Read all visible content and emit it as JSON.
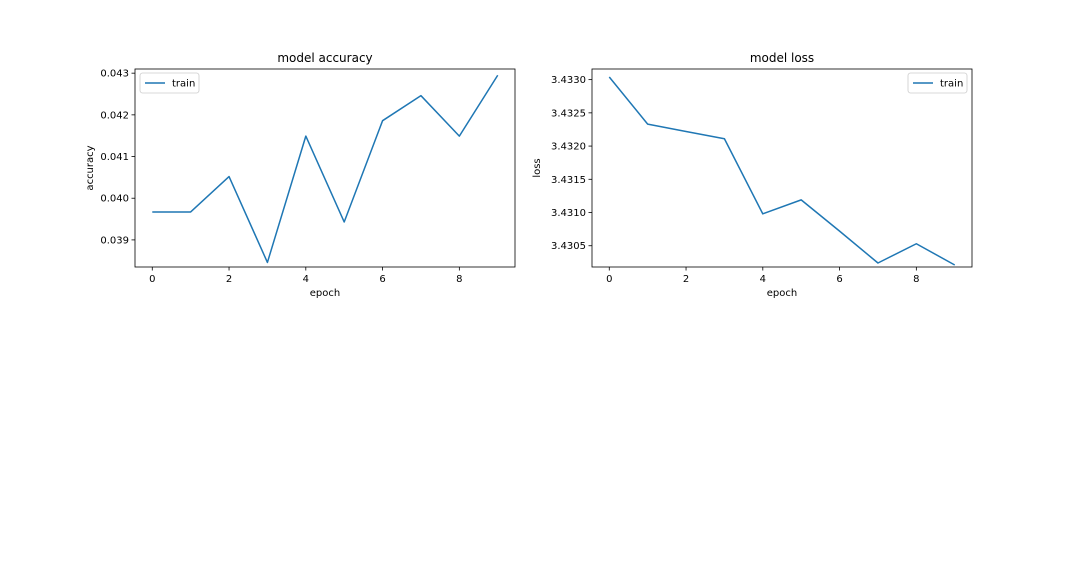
{
  "colors": {
    "series": "#1f77b4",
    "axes": "#000000",
    "legend_border": "#cccccc",
    "background": "#ffffff"
  },
  "chart_data": [
    {
      "type": "line",
      "title": "model accuracy",
      "xlabel": "epoch",
      "ylabel": "accuracy",
      "xlim": [
        -0.45,
        9.45
      ],
      "ylim": [
        0.03835,
        0.0431
      ],
      "xticks": [
        0,
        2,
        4,
        6,
        8
      ],
      "xtick_labels": [
        "0",
        "2",
        "4",
        "6",
        "8"
      ],
      "yticks": [
        0.039,
        0.04,
        0.041,
        0.042,
        0.043
      ],
      "ytick_labels": [
        "0.039",
        "0.040",
        "0.041",
        "0.042",
        "0.043"
      ],
      "legend": {
        "entries": [
          "train"
        ],
        "position": "upper-left"
      },
      "grid": false,
      "series": [
        {
          "name": "train",
          "x": [
            0,
            1,
            2,
            3,
            4,
            5,
            6,
            7,
            8,
            9
          ],
          "values": [
            0.03967,
            0.03967,
            0.04052,
            0.03846,
            0.04149,
            0.03943,
            0.04186,
            0.04246,
            0.04149,
            0.04295
          ]
        }
      ]
    },
    {
      "type": "line",
      "title": "model loss",
      "xlabel": "epoch",
      "ylabel": "loss",
      "xlim": [
        -0.45,
        9.45
      ],
      "ylim": [
        3.43018,
        3.43316
      ],
      "xticks": [
        0,
        2,
        4,
        6,
        8
      ],
      "xtick_labels": [
        "0",
        "2",
        "4",
        "6",
        "8"
      ],
      "yticks": [
        3.4305,
        3.431,
        3.4315,
        3.432,
        3.4325,
        3.433
      ],
      "ytick_labels": [
        "3.4305",
        "3.4310",
        "3.4315",
        "3.4320",
        "3.4325",
        "3.4330"
      ],
      "legend": {
        "entries": [
          "train"
        ],
        "position": "upper-right"
      },
      "grid": false,
      "series": [
        {
          "name": "train",
          "x": [
            0,
            1,
            2,
            3,
            4,
            5,
            6,
            7,
            8,
            9
          ],
          "values": [
            3.43304,
            3.43233,
            3.43222,
            3.43211,
            3.43098,
            3.43119,
            3.43072,
            3.43024,
            3.43053,
            3.43021
          ]
        }
      ]
    }
  ]
}
